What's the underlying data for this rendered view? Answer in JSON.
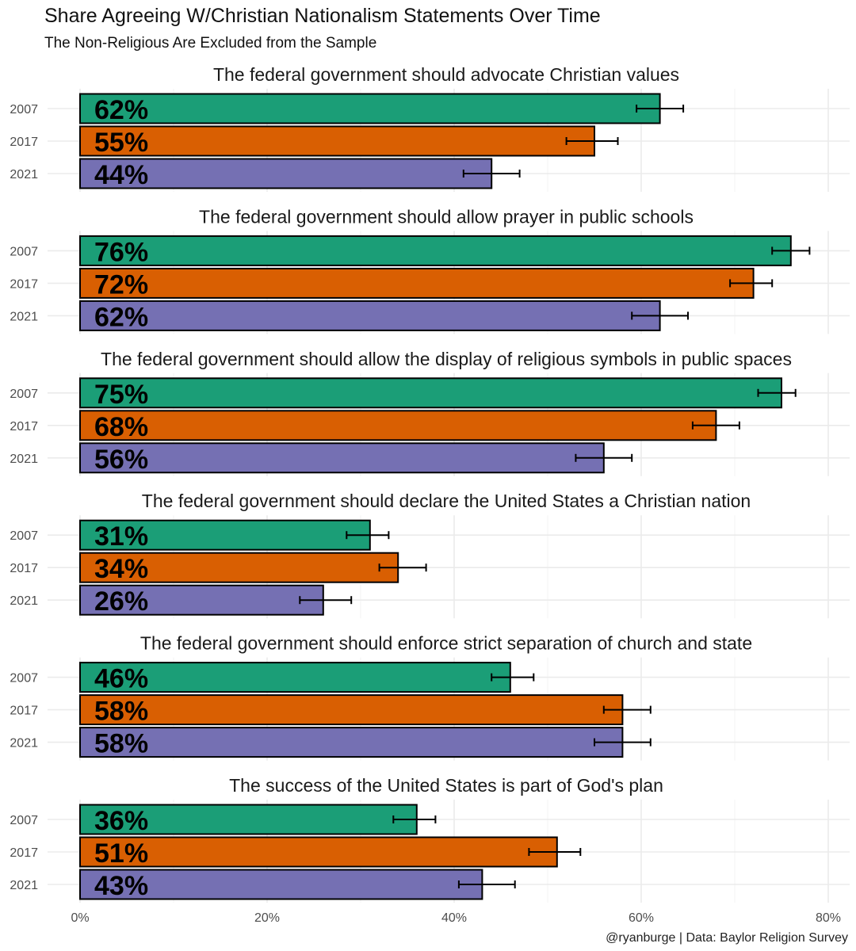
{
  "chart_data": {
    "type": "bar",
    "orientation": "horizontal",
    "title": "Share Agreeing W/Christian Nationalism Statements Over Time",
    "subtitle": "The Non-Religious Are Excluded from the Sample",
    "caption": "@ryanburge | Data: Baylor Religion Survey",
    "categories": [
      "2007",
      "2017",
      "2021"
    ],
    "xlim": [
      0,
      80
    ],
    "x_ticks": [
      0,
      20,
      40,
      60,
      80
    ],
    "x_tick_labels": [
      "0%",
      "20%",
      "40%",
      "60%",
      "80%"
    ],
    "grid": true,
    "legend": "none",
    "colors": {
      "2007": "#1b9e77",
      "2017": "#d95f02",
      "2021": "#7570b3"
    },
    "facets": [
      {
        "title": "The federal government should advocate Christian values",
        "values": [
          62,
          55,
          44
        ],
        "labels": [
          "62%",
          "55%",
          "44%"
        ],
        "error_low": [
          59.5,
          52.0,
          41.0
        ],
        "error_high": [
          64.5,
          57.5,
          47.0
        ]
      },
      {
        "title": "The federal government should allow prayer in public schools",
        "values": [
          76,
          72,
          62
        ],
        "labels": [
          "76%",
          "72%",
          "62%"
        ],
        "error_low": [
          74.0,
          69.5,
          59.0
        ],
        "error_high": [
          78.0,
          74.0,
          65.0
        ]
      },
      {
        "title": "The federal government should allow the display of religious symbols in public spaces",
        "values": [
          75,
          68,
          56
        ],
        "labels": [
          "75%",
          "68%",
          "56%"
        ],
        "error_low": [
          72.5,
          65.5,
          53.0
        ],
        "error_high": [
          76.5,
          70.5,
          59.0
        ]
      },
      {
        "title": "The federal government should declare the United States a Christian nation",
        "values": [
          31,
          34,
          26
        ],
        "labels": [
          "31%",
          "34%",
          "26%"
        ],
        "error_low": [
          28.5,
          32.0,
          23.5
        ],
        "error_high": [
          33.0,
          37.0,
          29.0
        ]
      },
      {
        "title": "The federal government should enforce strict separation of church and state",
        "values": [
          46,
          58,
          58
        ],
        "labels": [
          "46%",
          "58%",
          "58%"
        ],
        "error_low": [
          44.0,
          56.0,
          55.0
        ],
        "error_high": [
          48.5,
          61.0,
          61.0
        ]
      },
      {
        "title": "The success of the United States is part of God's plan",
        "values": [
          36,
          51,
          43
        ],
        "labels": [
          "36%",
          "51%",
          "43%"
        ],
        "error_low": [
          33.5,
          48.0,
          40.5
        ],
        "error_high": [
          38.0,
          53.5,
          46.5
        ]
      }
    ]
  }
}
